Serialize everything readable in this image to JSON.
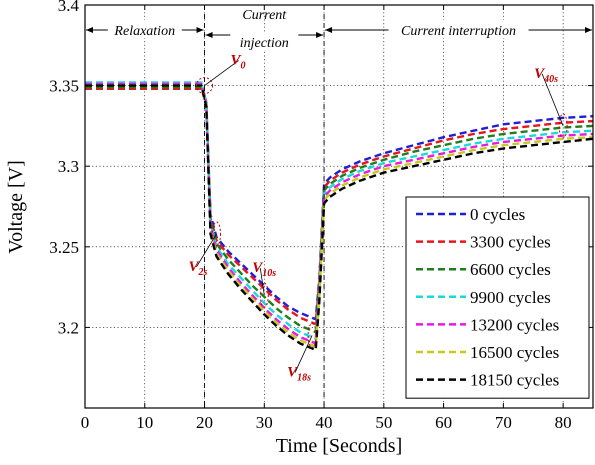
{
  "chart_data": {
    "type": "line",
    "title": "",
    "xlabel": "Time [Seconds]",
    "ylabel": "Voltage [V]",
    "xlim": [
      0,
      85
    ],
    "ylim": [
      3.15,
      3.4
    ],
    "xticks": [
      0,
      10,
      20,
      30,
      40,
      50,
      60,
      70,
      80
    ],
    "yticks": [
      3.2,
      3.25,
      3.3,
      3.35,
      3.4
    ],
    "ytick_labels": [
      "3.2",
      "3.25",
      "3.3",
      "3.35",
      "3.4"
    ],
    "grid": true,
    "legend_position": "bottom-right",
    "phases": [
      {
        "label": "Relaxation",
        "start": 0,
        "end": 20
      },
      {
        "label_line1": "Current",
        "label_line2": "injection",
        "start": 20,
        "end": 40
      },
      {
        "label": "Current interruption",
        "start": 40,
        "end": 85
      }
    ],
    "annotations": [
      {
        "main": "V",
        "sub": "0",
        "x": 20,
        "y": 3.35
      },
      {
        "main": "V",
        "sub": "2s",
        "x": 22,
        "y": 3.258
      },
      {
        "main": "V",
        "sub": "10s",
        "x": 30,
        "y": 3.22
      },
      {
        "main": "V",
        "sub": "18s",
        "x": 38,
        "y": 3.195
      },
      {
        "main": "V",
        "sub": "40s",
        "x": 80,
        "y": 3.325
      }
    ],
    "series": [
      {
        "name": "0 cycles",
        "color": "#1f1fd6",
        "points": [
          [
            0,
            3.35
          ],
          [
            19.5,
            3.35
          ],
          [
            20.3,
            3.34
          ],
          [
            21,
            3.27
          ],
          [
            22,
            3.256
          ],
          [
            24,
            3.247
          ],
          [
            26,
            3.24
          ],
          [
            28,
            3.233
          ],
          [
            30,
            3.226
          ],
          [
            32,
            3.219
          ],
          [
            34,
            3.213
          ],
          [
            36,
            3.209
          ],
          [
            38,
            3.206
          ],
          [
            38.6,
            3.205
          ],
          [
            39.2,
            3.23
          ],
          [
            40,
            3.289
          ],
          [
            41,
            3.293
          ],
          [
            43,
            3.298
          ],
          [
            46,
            3.303
          ],
          [
            50,
            3.308
          ],
          [
            55,
            3.313
          ],
          [
            60,
            3.318
          ],
          [
            65,
            3.322
          ],
          [
            70,
            3.326
          ],
          [
            75,
            3.328
          ],
          [
            80,
            3.33
          ],
          [
            85,
            3.331
          ]
        ]
      },
      {
        "name": "3300 cycles",
        "color": "#e8141e",
        "points": [
          [
            0,
            3.348
          ],
          [
            19.5,
            3.348
          ],
          [
            20.3,
            3.338
          ],
          [
            21,
            3.268
          ],
          [
            22,
            3.254
          ],
          [
            24,
            3.245
          ],
          [
            26,
            3.238
          ],
          [
            28,
            3.231
          ],
          [
            30,
            3.224
          ],
          [
            32,
            3.217
          ],
          [
            34,
            3.211
          ],
          [
            36,
            3.206
          ],
          [
            38,
            3.203
          ],
          [
            38.6,
            3.202
          ],
          [
            39.2,
            3.228
          ],
          [
            40,
            3.287
          ],
          [
            41,
            3.291
          ],
          [
            43,
            3.296
          ],
          [
            46,
            3.301
          ],
          [
            50,
            3.306
          ],
          [
            55,
            3.311
          ],
          [
            60,
            3.316
          ],
          [
            65,
            3.32
          ],
          [
            70,
            3.323
          ],
          [
            75,
            3.325
          ],
          [
            80,
            3.327
          ],
          [
            85,
            3.328
          ]
        ]
      },
      {
        "name": "6600 cycles",
        "color": "#1e7d1e",
        "points": [
          [
            0,
            3.349
          ],
          [
            19.5,
            3.349
          ],
          [
            20.3,
            3.339
          ],
          [
            21,
            3.266
          ],
          [
            22,
            3.252
          ],
          [
            24,
            3.242
          ],
          [
            26,
            3.234
          ],
          [
            28,
            3.226
          ],
          [
            30,
            3.219
          ],
          [
            32,
            3.212
          ],
          [
            34,
            3.206
          ],
          [
            36,
            3.201
          ],
          [
            38,
            3.198
          ],
          [
            38.6,
            3.197
          ],
          [
            39.2,
            3.225
          ],
          [
            40,
            3.285
          ],
          [
            41,
            3.289
          ],
          [
            43,
            3.294
          ],
          [
            46,
            3.299
          ],
          [
            50,
            3.304
          ],
          [
            55,
            3.309
          ],
          [
            60,
            3.313
          ],
          [
            65,
            3.317
          ],
          [
            70,
            3.32
          ],
          [
            75,
            3.322
          ],
          [
            80,
            3.324
          ],
          [
            85,
            3.325
          ]
        ]
      },
      {
        "name": "9900 cycles",
        "color": "#19d9d9",
        "points": [
          [
            0,
            3.352
          ],
          [
            19.5,
            3.352
          ],
          [
            20.3,
            3.34
          ],
          [
            21,
            3.264
          ],
          [
            22,
            3.25
          ],
          [
            24,
            3.239
          ],
          [
            26,
            3.231
          ],
          [
            28,
            3.223
          ],
          [
            30,
            3.215
          ],
          [
            32,
            3.208
          ],
          [
            34,
            3.202
          ],
          [
            36,
            3.197
          ],
          [
            38,
            3.194
          ],
          [
            38.6,
            3.193
          ],
          [
            39.2,
            3.222
          ],
          [
            40,
            3.283
          ],
          [
            41,
            3.287
          ],
          [
            43,
            3.292
          ],
          [
            46,
            3.297
          ],
          [
            50,
            3.302
          ],
          [
            55,
            3.306
          ],
          [
            60,
            3.31
          ],
          [
            65,
            3.314
          ],
          [
            70,
            3.317
          ],
          [
            75,
            3.319
          ],
          [
            80,
            3.321
          ],
          [
            85,
            3.322
          ]
        ]
      },
      {
        "name": "13200 cycles",
        "color": "#e619e6",
        "points": [
          [
            0,
            3.351
          ],
          [
            19.5,
            3.351
          ],
          [
            20.3,
            3.339
          ],
          [
            21,
            3.262
          ],
          [
            22,
            3.248
          ],
          [
            24,
            3.237
          ],
          [
            26,
            3.228
          ],
          [
            28,
            3.22
          ],
          [
            30,
            3.212
          ],
          [
            32,
            3.205
          ],
          [
            34,
            3.199
          ],
          [
            36,
            3.194
          ],
          [
            38,
            3.191
          ],
          [
            38.6,
            3.19
          ],
          [
            39.2,
            3.22
          ],
          [
            40,
            3.281
          ],
          [
            41,
            3.285
          ],
          [
            43,
            3.29
          ],
          [
            46,
            3.295
          ],
          [
            50,
            3.3
          ],
          [
            55,
            3.304
          ],
          [
            60,
            3.308
          ],
          [
            65,
            3.312
          ],
          [
            70,
            3.315
          ],
          [
            75,
            3.317
          ],
          [
            80,
            3.319
          ],
          [
            85,
            3.32
          ]
        ]
      },
      {
        "name": "16500 cycles",
        "color": "#c8c81e",
        "points": [
          [
            0,
            3.35
          ],
          [
            19.5,
            3.35
          ],
          [
            20.3,
            3.338
          ],
          [
            21,
            3.26
          ],
          [
            22,
            3.246
          ],
          [
            24,
            3.235
          ],
          [
            26,
            3.226
          ],
          [
            28,
            3.218
          ],
          [
            30,
            3.21
          ],
          [
            32,
            3.203
          ],
          [
            34,
            3.197
          ],
          [
            36,
            3.192
          ],
          [
            38,
            3.189
          ],
          [
            38.6,
            3.188
          ],
          [
            39.2,
            3.218
          ],
          [
            40,
            3.279
          ],
          [
            41,
            3.283
          ],
          [
            43,
            3.288
          ],
          [
            46,
            3.293
          ],
          [
            50,
            3.298
          ],
          [
            55,
            3.302
          ],
          [
            60,
            3.306
          ],
          [
            65,
            3.31
          ],
          [
            70,
            3.313
          ],
          [
            75,
            3.315
          ],
          [
            80,
            3.317
          ],
          [
            85,
            3.318
          ]
        ]
      },
      {
        "name": "18150 cycles",
        "color": "#000000",
        "points": [
          [
            0,
            3.35
          ],
          [
            19.5,
            3.35
          ],
          [
            20.3,
            3.337
          ],
          [
            21,
            3.258
          ],
          [
            22,
            3.244
          ],
          [
            24,
            3.233
          ],
          [
            26,
            3.224
          ],
          [
            28,
            3.216
          ],
          [
            30,
            3.208
          ],
          [
            32,
            3.201
          ],
          [
            34,
            3.195
          ],
          [
            36,
            3.19
          ],
          [
            38,
            3.187
          ],
          [
            38.6,
            3.186
          ],
          [
            39.2,
            3.216
          ],
          [
            40,
            3.277
          ],
          [
            41,
            3.281
          ],
          [
            43,
            3.286
          ],
          [
            46,
            3.291
          ],
          [
            50,
            3.296
          ],
          [
            55,
            3.3
          ],
          [
            60,
            3.304
          ],
          [
            65,
            3.308
          ],
          [
            70,
            3.311
          ],
          [
            75,
            3.313
          ],
          [
            80,
            3.315
          ],
          [
            85,
            3.317
          ]
        ]
      }
    ]
  }
}
